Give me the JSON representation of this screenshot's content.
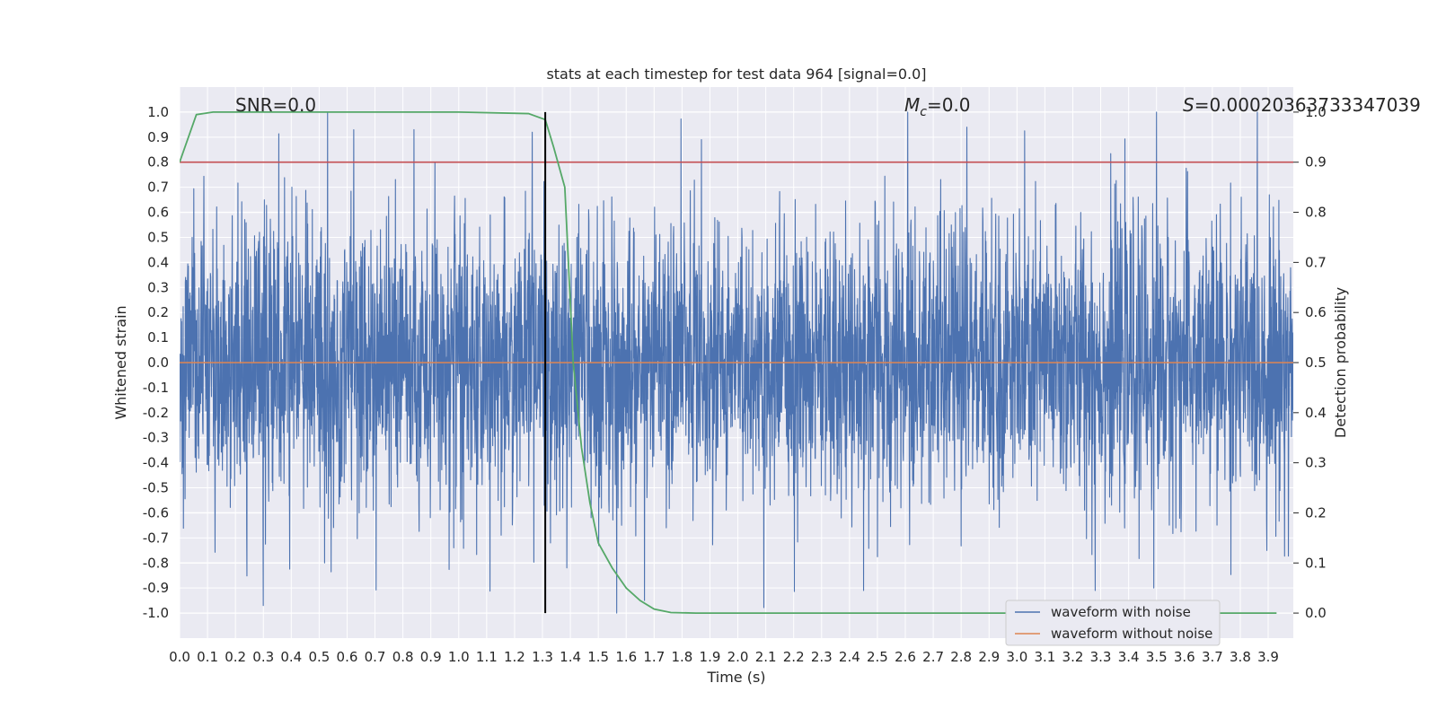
{
  "chart_data": {
    "type": "line",
    "title": "stats at each timestep for test data 964 [signal=0.0]",
    "xlabel": "Time (s)",
    "ylabel": "Whitened strain",
    "y2label": "Detection probability",
    "xlim": [
      0.0,
      3.99
    ],
    "ylim": [
      -1.1,
      1.1
    ],
    "y2lim": [
      -0.05,
      1.05
    ],
    "x_ticks": [
      0.0,
      0.1,
      0.2,
      0.3,
      0.4,
      0.5,
      0.6,
      0.7,
      0.8,
      0.9,
      1.0,
      1.1,
      1.2,
      1.3,
      1.4,
      1.5,
      1.6,
      1.7,
      1.8,
      1.9,
      2.0,
      2.1,
      2.2,
      2.3,
      2.4,
      2.5,
      2.6,
      2.7,
      2.8,
      2.9,
      3.0,
      3.1,
      3.2,
      3.3,
      3.4,
      3.5,
      3.6,
      3.7,
      3.8,
      3.9
    ],
    "y_ticks": [
      1.0,
      0.9,
      0.8,
      0.7,
      0.6,
      0.5,
      0.4,
      0.3,
      0.2,
      0.1,
      0.0,
      -0.1,
      -0.2,
      -0.3,
      -0.4,
      -0.5,
      -0.6,
      -0.7,
      -0.8,
      -0.9,
      -1.0
    ],
    "y2_ticks": [
      1.0,
      0.9,
      0.8,
      0.7,
      0.6,
      0.5,
      0.4,
      0.3,
      0.2,
      0.1,
      0.0
    ],
    "grid": true,
    "legend_placement": "lower-right",
    "annotations": {
      "snr": "SNR=0.0",
      "mc_symbol": "M",
      "mc_sub": "c",
      "mc_value": "=0.0",
      "s_symbol": "S",
      "s_value": "=0.00020363733347039"
    },
    "series": [
      {
        "name": "waveform with noise",
        "color": "#4c72b0",
        "noise_range": [
          -1.0,
          1.0
        ],
        "notable_peaks": [
          {
            "x": 0.53,
            "y": 1.0
          },
          {
            "x": 0.84,
            "y": 0.93
          },
          {
            "x": 1.87,
            "y": 0.89
          },
          {
            "x": 2.82,
            "y": 0.94
          },
          {
            "x": 3.5,
            "y": 1.0
          },
          {
            "x": 0.3,
            "y": -0.97
          },
          {
            "x": 2.45,
            "y": -0.91
          },
          {
            "x": 3.28,
            "y": -0.91
          },
          {
            "x": 3.49,
            "y": -0.9
          }
        ]
      },
      {
        "name": "waveform without noise",
        "color": "#dd8452",
        "constant": 0.0
      }
    ],
    "detection_probability": {
      "color": "#55a868",
      "x": [
        0.0,
        0.06,
        0.12,
        0.2,
        0.5,
        1.0,
        1.25,
        1.31,
        1.34,
        1.38,
        1.41,
        1.44,
        1.47,
        1.5,
        1.55,
        1.6,
        1.65,
        1.7,
        1.76,
        1.85,
        2.0,
        3.93
      ],
      "y": [
        0.9,
        0.995,
        1.0,
        1.0,
        1.0,
        1.0,
        0.997,
        0.985,
        0.93,
        0.85,
        0.5,
        0.33,
        0.22,
        0.14,
        0.09,
        0.05,
        0.025,
        0.008,
        0.001,
        0.0,
        0.0,
        0.0
      ]
    },
    "threshold": {
      "color": "#c44e52",
      "y2": 0.9
    },
    "vertical_marker": {
      "color": "#000000",
      "x": 1.31
    }
  }
}
